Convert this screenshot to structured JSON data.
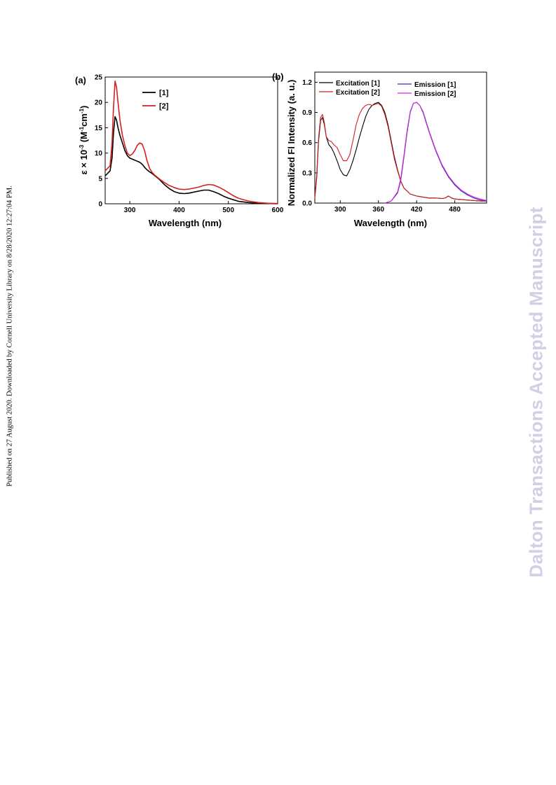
{
  "side_text": "Published on 27 August 2020. Downloaded by Cornell University Library on 8/28/2020 12:27:04 PM.",
  "watermark": "Dalton Transactions Accepted Manuscript",
  "chart_data": [
    {
      "panel": "(a)",
      "type": "line",
      "xlabel": "Wavelength (nm)",
      "ylabel_parts": [
        "ε × 10",
        "-3",
        " (M",
        "-1",
        "cm",
        "-1",
        ")"
      ],
      "xlim": [
        250,
        600
      ],
      "ylim": [
        0,
        25
      ],
      "xticks": [
        300,
        400,
        500,
        600
      ],
      "yticks": [
        0,
        5,
        10,
        15,
        20,
        25
      ],
      "legend_position": "top-center",
      "series": [
        {
          "name": "[1]",
          "color": "#000000",
          "x": [
            250,
            255,
            260,
            264,
            267,
            270,
            273,
            276,
            280,
            285,
            290,
            295,
            300,
            305,
            310,
            315,
            320,
            325,
            330,
            335,
            340,
            345,
            350,
            360,
            370,
            380,
            390,
            400,
            410,
            420,
            430,
            440,
            450,
            460,
            470,
            480,
            490,
            500,
            510,
            520,
            540,
            560,
            580,
            600
          ],
          "y": [
            5.5,
            6.0,
            6.5,
            9.0,
            14.0,
            17.2,
            16.5,
            15.0,
            13.5,
            12.0,
            10.5,
            9.5,
            9.0,
            8.8,
            8.6,
            8.4,
            8.2,
            7.8,
            7.2,
            6.7,
            6.3,
            6.0,
            5.6,
            4.8,
            3.8,
            3.0,
            2.4,
            2.1,
            2.0,
            2.1,
            2.3,
            2.5,
            2.7,
            2.7,
            2.4,
            2.0,
            1.5,
            1.1,
            0.8,
            0.5,
            0.25,
            0.1,
            0.05,
            0.0
          ]
        },
        {
          "name": "[2]",
          "color": "#d42020",
          "x": [
            250,
            255,
            260,
            264,
            267,
            270,
            273,
            276,
            280,
            285,
            290,
            295,
            300,
            305,
            310,
            315,
            320,
            325,
            330,
            335,
            340,
            345,
            350,
            360,
            370,
            380,
            390,
            400,
            410,
            420,
            430,
            440,
            450,
            460,
            470,
            480,
            490,
            500,
            510,
            520,
            540,
            560,
            580,
            600
          ],
          "y": [
            6.5,
            7.0,
            7.5,
            12.0,
            19.0,
            24.2,
            23.0,
            20.0,
            16.5,
            13.5,
            11.5,
            10.0,
            9.5,
            9.8,
            10.5,
            11.5,
            12.0,
            11.8,
            10.5,
            8.5,
            7.0,
            6.2,
            5.7,
            4.9,
            4.2,
            3.6,
            3.2,
            2.9,
            2.8,
            2.9,
            3.1,
            3.3,
            3.6,
            3.8,
            3.7,
            3.3,
            2.8,
            2.2,
            1.6,
            1.1,
            0.55,
            0.25,
            0.1,
            0.05
          ]
        }
      ]
    },
    {
      "panel": "(b)",
      "type": "line",
      "xlabel": "Wavelength (nm)",
      "ylabel": "Normalized Fl Intensity (a. u.)",
      "xlim": [
        260,
        530
      ],
      "ylim": [
        0,
        1.3
      ],
      "xticks": [
        300,
        360,
        420,
        480
      ],
      "yticks": [
        0.0,
        0.3,
        0.6,
        0.9,
        1.2
      ],
      "legend_position": "top",
      "series": [
        {
          "name": "Excitation [1]",
          "color": "#000000",
          "x": [
            260,
            263,
            266,
            269,
            272,
            275,
            278,
            282,
            286,
            290,
            295,
            300,
            305,
            310,
            315,
            320,
            325,
            330,
            335,
            340,
            345,
            350,
            355,
            360,
            365,
            370,
            375,
            380,
            385,
            390,
            395,
            400,
            410,
            420,
            430,
            440,
            450,
            460,
            465,
            470,
            475,
            480,
            500,
            520,
            530
          ],
          "y": [
            0.05,
            0.25,
            0.62,
            0.82,
            0.85,
            0.78,
            0.66,
            0.58,
            0.55,
            0.5,
            0.42,
            0.33,
            0.28,
            0.27,
            0.33,
            0.42,
            0.53,
            0.65,
            0.76,
            0.86,
            0.93,
            0.97,
            0.99,
            1.0,
            0.97,
            0.9,
            0.78,
            0.62,
            0.46,
            0.33,
            0.22,
            0.15,
            0.09,
            0.07,
            0.06,
            0.05,
            0.05,
            0.045,
            0.05,
            0.07,
            0.05,
            0.04,
            0.03,
            0.02,
            0.02
          ]
        },
        {
          "name": "Excitation [2]",
          "color": "#d42020",
          "x": [
            260,
            263,
            266,
            269,
            272,
            275,
            278,
            282,
            286,
            290,
            295,
            300,
            305,
            310,
            315,
            320,
            325,
            330,
            335,
            340,
            345,
            350,
            355,
            360,
            365,
            370,
            375,
            380,
            385,
            390,
            395,
            400,
            410,
            420,
            430,
            440,
            450,
            460,
            465,
            470,
            475,
            480,
            500,
            520,
            530
          ],
          "y": [
            0.05,
            0.28,
            0.65,
            0.85,
            0.88,
            0.8,
            0.66,
            0.62,
            0.61,
            0.58,
            0.55,
            0.48,
            0.42,
            0.42,
            0.48,
            0.62,
            0.78,
            0.88,
            0.94,
            0.97,
            0.98,
            0.97,
            0.98,
            0.99,
            0.96,
            0.88,
            0.76,
            0.6,
            0.44,
            0.32,
            0.22,
            0.15,
            0.09,
            0.07,
            0.06,
            0.05,
            0.05,
            0.045,
            0.05,
            0.07,
            0.05,
            0.04,
            0.03,
            0.02,
            0.02
          ]
        },
        {
          "name": "Emission [1]",
          "color": "#3a2ab8",
          "x": [
            370,
            380,
            390,
            395,
            400,
            405,
            410,
            415,
            420,
            425,
            430,
            435,
            440,
            450,
            460,
            470,
            480,
            490,
            500,
            510,
            520,
            530
          ],
          "y": [
            0.0,
            0.02,
            0.1,
            0.22,
            0.45,
            0.7,
            0.9,
            0.99,
            1.0,
            0.97,
            0.9,
            0.8,
            0.7,
            0.52,
            0.37,
            0.26,
            0.18,
            0.12,
            0.08,
            0.05,
            0.03,
            0.02
          ]
        },
        {
          "name": "Emission [2]",
          "color": "#d028d8",
          "x": [
            370,
            380,
            390,
            395,
            400,
            405,
            410,
            415,
            420,
            425,
            430,
            435,
            440,
            450,
            460,
            470,
            480,
            490,
            500,
            510,
            520,
            530
          ],
          "y": [
            0.0,
            0.02,
            0.11,
            0.24,
            0.47,
            0.72,
            0.91,
            0.99,
            1.0,
            0.97,
            0.91,
            0.81,
            0.71,
            0.53,
            0.38,
            0.27,
            0.19,
            0.13,
            0.09,
            0.06,
            0.04,
            0.025
          ]
        }
      ]
    }
  ]
}
